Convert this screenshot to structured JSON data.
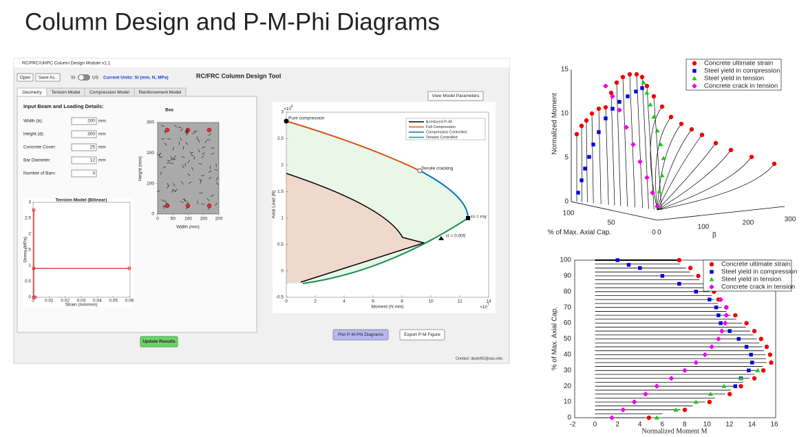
{
  "slide_title": "Column Design and P-M-Phi Diagrams",
  "app": {
    "window_title": "RC/FRC/UHPC Column Design Module v1.1",
    "toolbar": {
      "open": "Open",
      "save": "Save As..",
      "si": "SI",
      "us": "US",
      "units": "Current Units: SI (mm, N, MPa)"
    },
    "heading": "RC/FRC Column Design Tool",
    "tabs": [
      "Geometry",
      "Tension Model",
      "Compression Model",
      "Reinforcement Model"
    ],
    "section_title": "Input Beam and Loading Details:",
    "inputs": [
      {
        "label": "Width (b):",
        "value": 200,
        "unit": "mm"
      },
      {
        "label": "Height (d):",
        "value": 300,
        "unit": "mm"
      },
      {
        "label": "Concrete Cover:",
        "value": 25,
        "unit": "mm"
      },
      {
        "label": "Bar Diameter:",
        "value": 12,
        "unit": "mm"
      },
      {
        "label": "Number of Bars:",
        "value": 3
      }
    ],
    "section_plot": {
      "title": "Bea",
      "xlabel": "Width (mm)",
      "ylabel": "Height (mm)",
      "xticks": [
        0,
        50,
        100,
        150,
        200
      ],
      "yticks": [
        0,
        100,
        200,
        300
      ]
    },
    "tension_plot": {
      "title": "Tension Model (Bilinear)",
      "xlabel": "Strain (mm/mm)",
      "ylabel": "Stress (MPa)",
      "xticks": [
        0,
        0.01,
        0.02,
        0.03,
        0.04,
        0.05,
        0.06
      ],
      "yticks": [
        0,
        0.5,
        1,
        1.5,
        2,
        2.5,
        3
      ]
    },
    "view_button": "View Model Parameters",
    "pm_plot": {
      "xlabel": "Moment (N mm)",
      "ylabel": "Axial Load (N)",
      "x_scale": "×10",
      "x_scale_exp": "7",
      "y_scale": "×10",
      "y_scale_exp": "6",
      "xticks": [
        0,
        2,
        4,
        6,
        8,
        10,
        12,
        14
      ],
      "yticks": [
        -0.5,
        0,
        0.5,
        1,
        1.5,
        2,
        2.5,
        3
      ],
      "legend": [
        "ϕ-reduced  P–M",
        "Full Compression",
        "Compression Controlled",
        "Tension Controlled"
      ],
      "annotations": [
        "Pure compression",
        "Tensile cracking",
        "εs = εsy",
        "εt = 0.005"
      ]
    },
    "buttons": [
      "Plot P-M-Phi Diagrams",
      "Export P-M Figure",
      "Update Results"
    ],
    "contact": "Contact: dpatel52@asu.edu"
  },
  "plot3d": {
    "legend": [
      "Concrete ultimate strain",
      "Steel yield in compression",
      "Steel yield in tension",
      "Concrete crack in tension"
    ],
    "zlabel": "Normalized Moment",
    "xlabel": "% of Max. Axial Cap.",
    "ylabel": "β",
    "zticks": [
      0,
      5,
      10,
      15
    ],
    "xticks": [
      100,
      50,
      0
    ],
    "yticks": [
      0,
      100,
      200,
      300
    ]
  },
  "plot2d": {
    "legend": [
      "Concrete ultimate strain",
      "Steel yield in compression",
      "Steel yield in tension",
      "Concrete crack in tension"
    ],
    "xlabel": "Normalized Moment M",
    "ylabel": "% of Max. Axial Cap.",
    "xticks": [
      -2,
      0,
      2,
      4,
      6,
      8,
      10,
      12,
      14,
      16
    ],
    "yticks": [
      0,
      10,
      20,
      30,
      40,
      50,
      60,
      70,
      80,
      90,
      100
    ]
  }
}
